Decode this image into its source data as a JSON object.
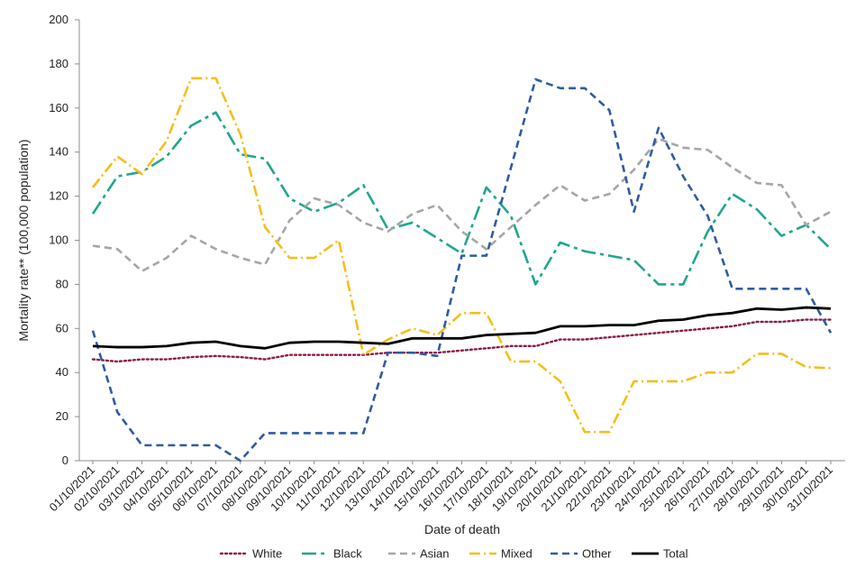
{
  "chart_data": {
    "type": "line",
    "title": "",
    "xlabel": "Date of death",
    "ylabel": "Mortality rate** (100,000 population)",
    "ylim": [
      0,
      200
    ],
    "yticks": [
      0,
      20,
      40,
      60,
      80,
      100,
      120,
      140,
      160,
      180,
      200
    ],
    "grid": false,
    "legend_position": "bottom",
    "categories": [
      "01/10/2021",
      "02/10/2021",
      "03/10/2021",
      "04/10/2021",
      "05/10/2021",
      "06/10/2021",
      "07/10/2021",
      "08/10/2021",
      "09/10/2021",
      "10/10/2021",
      "11/10/2021",
      "12/10/2021",
      "13/10/2021",
      "14/10/2021",
      "15/10/2021",
      "16/10/2021",
      "17/10/2021",
      "18/10/2021",
      "19/10/2021",
      "20/10/2021",
      "21/10/2021",
      "22/10/2021",
      "23/10/2021",
      "24/10/2021",
      "25/10/2021",
      "26/10/2021",
      "27/10/2021",
      "28/10/2021",
      "29/10/2021",
      "30/10/2021",
      "31/10/2021"
    ],
    "series": [
      {
        "name": "White",
        "color": "#8B1A4A",
        "dash": "dotted",
        "values": [
          46,
          45,
          46,
          46,
          47,
          47.5,
          47,
          46,
          48,
          48,
          48,
          48,
          49,
          49,
          49,
          50,
          51,
          52,
          52,
          55,
          55,
          56,
          57,
          58,
          59,
          60,
          61,
          63,
          63,
          64,
          64
        ]
      },
      {
        "name": "Black",
        "color": "#20A68F",
        "dash": "longdash",
        "values": [
          112,
          129,
          131,
          138,
          152,
          158,
          139,
          137,
          119,
          113,
          117,
          125,
          105,
          108,
          101,
          94,
          124,
          111,
          80,
          99,
          95,
          93,
          91,
          80,
          80,
          104,
          121,
          114,
          102,
          107,
          96
        ]
      },
      {
        "name": "Asian",
        "color": "#A6A6A6",
        "dash": "dash",
        "values": [
          97.5,
          96,
          86,
          92,
          102,
          96,
          92,
          89,
          109,
          119,
          116,
          108,
          104,
          112,
          116,
          104,
          96,
          106,
          116,
          125,
          118,
          121,
          132,
          146,
          142,
          141,
          133,
          126,
          125,
          107,
          113
        ]
      },
      {
        "name": "Mixed",
        "color": "#F5BE1A",
        "dash": "dashdot",
        "values": [
          124,
          138,
          130,
          145,
          173.5,
          173.5,
          148,
          106,
          92,
          92,
          100,
          48,
          55,
          60,
          57,
          67,
          67,
          45,
          45,
          36,
          13,
          13,
          36,
          36,
          36,
          40,
          40,
          48.5,
          48.5,
          42.5,
          42
        ]
      },
      {
        "name": "Other",
        "color": "#2F5BA3",
        "dash": "dash",
        "values": [
          59,
          22,
          7,
          7,
          7,
          7,
          0,
          12.5,
          12.5,
          12.5,
          12.5,
          12.5,
          49,
          49,
          47.5,
          93,
          93,
          133,
          173,
          169,
          169,
          159,
          113,
          151,
          129,
          111,
          78,
          78,
          78,
          78,
          58
        ]
      },
      {
        "name": "Total",
        "color": "#000000",
        "dash": "solid",
        "values": [
          52,
          51.5,
          51.5,
          52,
          53.5,
          54,
          52,
          51,
          53.5,
          54,
          54,
          53.5,
          53,
          55.5,
          55.5,
          55.5,
          57,
          57.5,
          58,
          61,
          61,
          61.5,
          61.5,
          63.5,
          64,
          66,
          67,
          69,
          68.5,
          69.5,
          69
        ]
      }
    ]
  }
}
